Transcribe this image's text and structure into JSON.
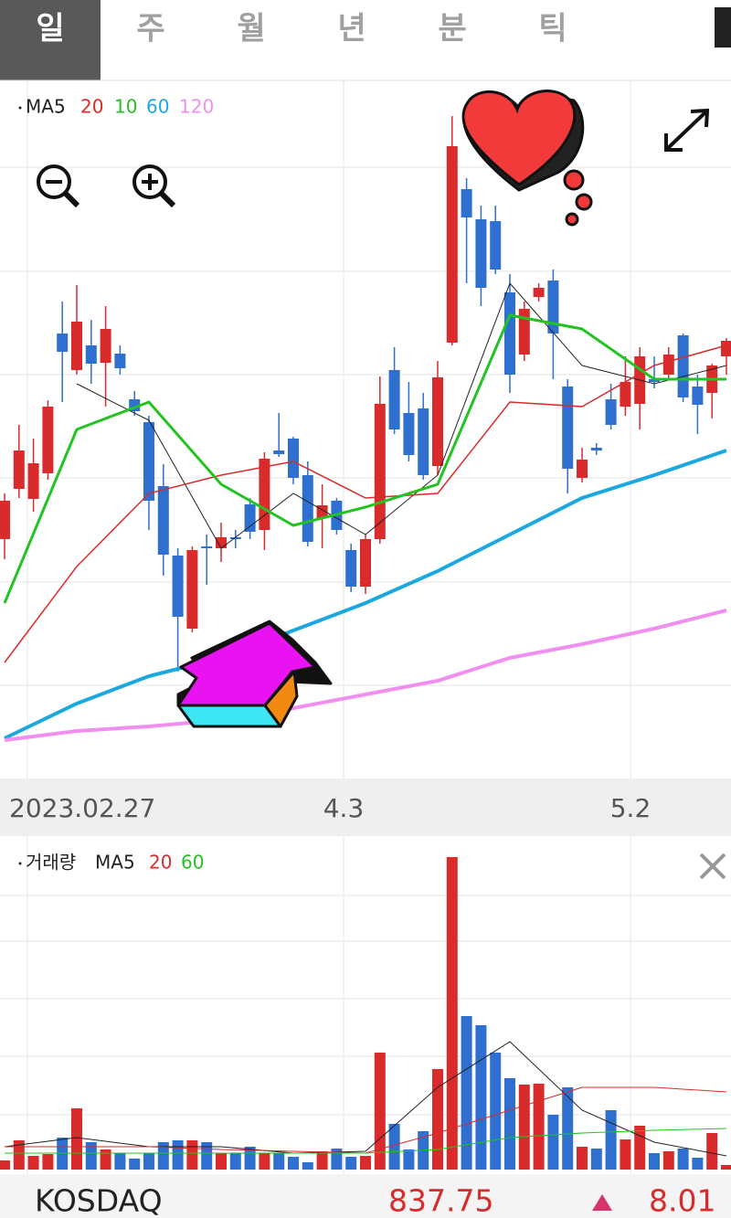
{
  "tabs": [
    "일",
    "주",
    "월",
    "년",
    "분",
    "틱"
  ],
  "chart_data": [
    {
      "type": "candlestick",
      "up_color": "#d92b2b",
      "down_color": "#2f6fd0",
      "ylim": [
        0,
        76
      ],
      "x_labels": [
        "2023.02.27",
        "4.3",
        "5.2"
      ],
      "open": [
        26,
        31.5,
        30.4,
        33.2,
        48.5,
        44.5,
        47.2,
        45.3,
        46.3,
        41.3,
        38.8,
        31.8,
        24.2,
        16.2,
        25.2,
        25,
        26.2,
        29.8,
        27,
        35.7,
        37,
        33,
        28.3,
        30.2,
        24.8,
        20.8,
        26,
        44.5,
        39.8,
        40.3,
        34,
        47.5,
        64.3,
        61,
        60.8,
        53,
        46.2,
        52.5,
        54.3,
        42.7,
        32.7,
        36,
        41.3,
        40.5,
        40.8,
        43.5,
        44,
        48.3,
        42.7,
        42,
        46
      ],
      "high": [
        31,
        38.5,
        37,
        41.2,
        52,
        53.8,
        50,
        51.5,
        47.2,
        42.2,
        39.5,
        34.2,
        25,
        25.2,
        26.5,
        27.8,
        27,
        30.5,
        35.5,
        39.8,
        37.2,
        34.5,
        32,
        30.5,
        25.5,
        26.5,
        43.8,
        47,
        43.2,
        42,
        45.5,
        72.3,
        65.5,
        62.5,
        62.5,
        55,
        52,
        54,
        55.5,
        43.5,
        36,
        36.5,
        43,
        46,
        47,
        46,
        47,
        48.5,
        44,
        45.2,
        48
      ],
      "low": [
        23.8,
        30.5,
        29,
        32.5,
        41,
        44,
        43,
        40.5,
        44,
        39.5,
        27,
        22,
        11.5,
        15.8,
        21,
        23.5,
        25,
        26,
        24.8,
        35,
        32,
        25.2,
        25,
        26.5,
        20.2,
        20,
        25.5,
        37.5,
        34.5,
        32.5,
        33,
        47.2,
        54,
        51.5,
        55,
        42,
        45.5,
        52,
        43.5,
        31,
        32.2,
        35.2,
        38,
        39.5,
        38,
        42.5,
        43.5,
        41,
        37.5,
        39.2,
        44
      ],
      "close": [
        30.2,
        35.7,
        34.3,
        40.5,
        46.5,
        49.8,
        45.2,
        49,
        44.7,
        40,
        30.2,
        24.3,
        17.5,
        24.8,
        25,
        26.2,
        26,
        26.8,
        34.8,
        35.3,
        32.7,
        25.7,
        29.7,
        27,
        20.8,
        26,
        40.8,
        38,
        35.2,
        33,
        43.7,
        69,
        61.2,
        53.5,
        55.5,
        44,
        51.2,
        53.5,
        48.5,
        33.7,
        34.7,
        35.7,
        38.5,
        43.2,
        46,
        43.2,
        46.2,
        41.5,
        40.7,
        45,
        47.7
      ],
      "series": [
        {
          "name": "MA5",
          "color": "#222222",
          "x": [
            5,
            10,
            15,
            20,
            25,
            30,
            35,
            40,
            45,
            50
          ],
          "values": [
            43,
            39,
            25,
            31,
            26.5,
            33,
            54,
            45,
            43,
            45
          ]
        },
        {
          "name": "20",
          "color": "#d92b2b",
          "x": [
            0,
            5,
            10,
            15,
            20,
            25,
            30,
            35,
            40,
            45,
            50
          ],
          "values": [
            12.5,
            23,
            31,
            33,
            34.5,
            30.5,
            31,
            41,
            40.5,
            45,
            47.2
          ]
        },
        {
          "name": "10",
          "color": "#22c322",
          "x": [
            0,
            5,
            10,
            15,
            20,
            25,
            30,
            35,
            40,
            45,
            50
          ],
          "values": [
            19,
            38,
            41,
            32,
            27.5,
            29.5,
            32,
            50.5,
            49,
            43.5,
            43.5
          ]
        },
        {
          "name": "60",
          "color": "#1aa8de",
          "x": [
            0,
            5,
            10,
            15,
            20,
            25,
            30,
            35,
            40,
            45,
            50
          ],
          "values": [
            4.2,
            8,
            11,
            13,
            16,
            19,
            22.5,
            26.5,
            30.5,
            33,
            35.7
          ]
        },
        {
          "name": "120",
          "color": "#f08ff0",
          "x": [
            0,
            5,
            10,
            15,
            20,
            25,
            30,
            35,
            40,
            45,
            50
          ],
          "values": [
            4,
            5,
            5.5,
            6.2,
            7.5,
            9,
            10.5,
            13,
            14.5,
            16.2,
            18.2
          ]
        }
      ]
    },
    {
      "type": "bar",
      "title": "거래량",
      "ylim": [
        0,
        35
      ],
      "values": [
        1,
        3.2,
        1.5,
        1.7,
        3.5,
        6.7,
        3,
        2.2,
        1.8,
        1.2,
        1.8,
        3,
        3.2,
        3.2,
        3,
        1.8,
        1.8,
        2.5,
        1.8,
        1.8,
        1.4,
        0.8,
        2,
        2.3,
        1.4,
        1.5,
        12.8,
        5,
        2.2,
        4.2,
        11,
        34.2,
        16.8,
        15.8,
        12.8,
        10,
        9.3,
        9.4,
        6,
        9,
        2.5,
        2.3,
        6.5,
        3.3,
        4.8,
        1.8,
        2,
        2.3,
        1.3,
        4,
        0.5
      ],
      "series": [
        {
          "name": "MA5",
          "color": "#222222",
          "x": [
            0,
            5,
            10,
            15,
            20,
            25,
            30,
            35,
            40,
            45,
            50
          ],
          "values": [
            2.5,
            3.5,
            2.5,
            2.5,
            1.8,
            2,
            9,
            14,
            6.5,
            3,
            1.5
          ]
        },
        {
          "name": "20",
          "color": "#d92b2b",
          "x": [
            0,
            5,
            10,
            15,
            20,
            25,
            30,
            35,
            40,
            45,
            50
          ],
          "values": [
            2.5,
            2.5,
            2.5,
            2.2,
            2,
            1.8,
            4,
            6.5,
            9,
            9,
            8.5
          ]
        },
        {
          "name": "60",
          "color": "#22c322",
          "x": [
            0,
            5,
            10,
            15,
            20,
            25,
            30,
            35,
            40,
            45,
            50
          ],
          "values": [
            1.8,
            1.8,
            1.8,
            1.8,
            1.8,
            1.8,
            2.2,
            3.5,
            4,
            4.3,
            4.5
          ]
        }
      ]
    }
  ],
  "footer": {
    "name": "KOSDAQ",
    "price": "837.75",
    "change": "8.01"
  }
}
